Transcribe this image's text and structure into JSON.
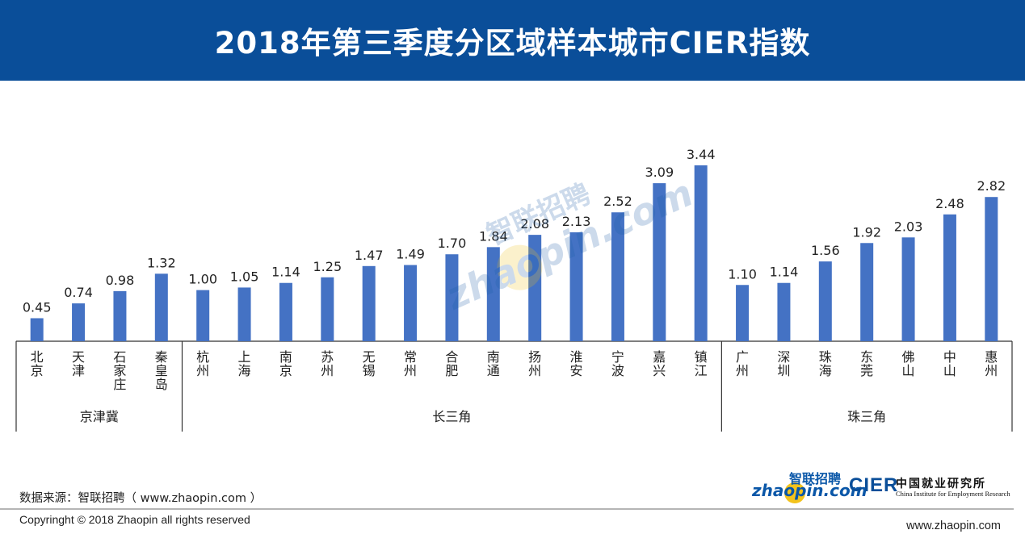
{
  "header": {
    "title": "2018年第三季度分区域样本城市CIER指数"
  },
  "colors": {
    "header_bg": "#0a4e99",
    "bar": "#4472c4",
    "text": "#222222",
    "axis": "#333333"
  },
  "chart_data": {
    "type": "bar",
    "title": "2018年第三季度分区域样本城市CIER指数",
    "xlabel": "",
    "ylabel": "",
    "ylim": [
      0,
      3.8
    ],
    "grid": false,
    "categories": [
      "北京",
      "天津",
      "石家庄",
      "秦皇岛",
      "杭州",
      "上海",
      "南京",
      "苏州",
      "无锡",
      "常州",
      "合肥",
      "南通",
      "扬州",
      "淮安",
      "宁波",
      "嘉兴",
      "镇江",
      "广州",
      "深圳",
      "珠海",
      "东莞",
      "佛山",
      "中山",
      "惠州"
    ],
    "values": [
      0.45,
      0.74,
      0.98,
      1.32,
      1.0,
      1.05,
      1.14,
      1.25,
      1.47,
      1.49,
      1.7,
      1.84,
      2.08,
      2.13,
      2.52,
      3.09,
      3.44,
      1.1,
      1.14,
      1.56,
      1.92,
      2.03,
      2.48,
      2.82
    ],
    "value_labels": [
      "0.45",
      "0.74",
      "0.98",
      "1.32",
      "1.00",
      "1.05",
      "1.14",
      "1.25",
      "1.47",
      "1.49",
      "1.70",
      "1.84",
      "2.08",
      "2.13",
      "2.52",
      "3.09",
      "3.44",
      "1.10",
      "1.14",
      "1.56",
      "1.92",
      "2.03",
      "2.48",
      "2.82"
    ],
    "groups": [
      {
        "name": "京津冀",
        "count": 4
      },
      {
        "name": "长三角",
        "count": 13
      },
      {
        "name": "珠三角",
        "count": 7
      }
    ]
  },
  "watermark": {
    "top": "智联招聘",
    "bottom": "zhaopin.com"
  },
  "source": "数据来源：智联招聘（ www.zhaopin.com ）",
  "copyright": "Copyringht © 2018 Zhaopin all rights reserved",
  "site": "www.zhaopin.com",
  "logos": {
    "zhaopin_top": "智联招聘",
    "zhaopin_bottom": "zhaopin.com",
    "cier_mark": "CIER",
    "cier_cn": "中国就业研究所",
    "cier_en": "China Institute for Employment Research"
  }
}
